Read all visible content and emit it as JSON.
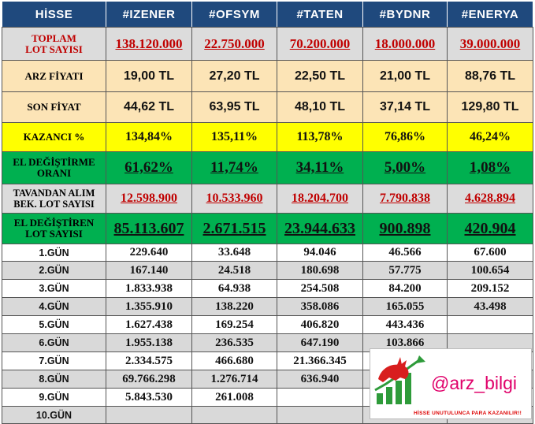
{
  "headers": [
    "HİSSE",
    "#IZENER",
    "#OFSYM",
    "#TATEN",
    "#BYDNR",
    "#ENERYA"
  ],
  "summary_rows": [
    {
      "label": "TOPLAM\nLOT SAYISI",
      "values": [
        "138.120.000",
        "22.750.000",
        "70.200.000",
        "18.000.000",
        "39.000.000"
      ]
    },
    {
      "label": "ARZ FİYATI",
      "values": [
        "19,00 TL",
        "27,20 TL",
        "22,50 TL",
        "21,00 TL",
        "88,76 TL"
      ]
    },
    {
      "label": "SON FİYAT",
      "values": [
        "44,62 TL",
        "63,95 TL",
        "48,10 TL",
        "37,14 TL",
        "129,80 TL"
      ]
    },
    {
      "label": "KAZANCI %",
      "values": [
        "134,84%",
        "135,11%",
        "113,78%",
        "76,86%",
        "46,24%"
      ]
    },
    {
      "label": "EL DEĞİŞTİRME\nORANI",
      "values": [
        "61,62%",
        "11,74%",
        "34,11%",
        "5,00%",
        "1,08%"
      ]
    },
    {
      "label": "TAVANDAN ALIM\nBEK. LOT SAYISI",
      "values": [
        "12.598.900",
        "10.533.960",
        "18.204.700",
        "7.790.838",
        "4.628.894"
      ]
    },
    {
      "label": "EL DEĞİŞTİREN\nLOT SAYISI",
      "values": [
        "85.113.607",
        "2.671.515",
        "23.944.633",
        "900.898",
        "420.904"
      ]
    }
  ],
  "day_rows": [
    {
      "label": "1.GÜN",
      "values": [
        "229.640",
        "33.648",
        "94.046",
        "46.566",
        "67.600"
      ]
    },
    {
      "label": "2.GÜN",
      "values": [
        "167.140",
        "24.518",
        "180.698",
        "57.775",
        "100.654"
      ]
    },
    {
      "label": "3.GÜN",
      "values": [
        "1.833.938",
        "64.938",
        "254.508",
        "84.200",
        "209.152"
      ]
    },
    {
      "label": "4.GÜN",
      "values": [
        "1.355.910",
        "138.220",
        "358.086",
        "165.055",
        "43.498"
      ]
    },
    {
      "label": "5.GÜN",
      "values": [
        "1.627.438",
        "169.254",
        "406.820",
        "443.436",
        ""
      ]
    },
    {
      "label": "6.GÜN",
      "values": [
        "1.955.138",
        "236.535",
        "647.190",
        "103.866",
        ""
      ]
    },
    {
      "label": "7.GÜN",
      "values": [
        "2.334.575",
        "466.680",
        "21.366.345",
        "",
        ""
      ]
    },
    {
      "label": "8.GÜN",
      "values": [
        "69.766.298",
        "1.276.714",
        "636.940",
        "",
        ""
      ]
    },
    {
      "label": "9.GÜN",
      "values": [
        "5.843.530",
        "261.008",
        "",
        "",
        ""
      ]
    },
    {
      "label": "10.GÜN",
      "values": [
        "",
        "",
        "",
        "",
        ""
      ]
    }
  ],
  "logo": {
    "handle": "@arz_bilgi",
    "tagline": "HİSSE UNUTULUNCA PARA KAZANILIR!!",
    "icon": "bull-chart-icon"
  },
  "colors": {
    "header_bg": "#1f497d",
    "lot_bg": "#dcdcdc",
    "price_bg": "#fce4b6",
    "gain_bg": "#ffff00",
    "turnover_bg": "#00b050",
    "day_alt_bg": "#d9d9d9",
    "red_text": "#c00000"
  }
}
